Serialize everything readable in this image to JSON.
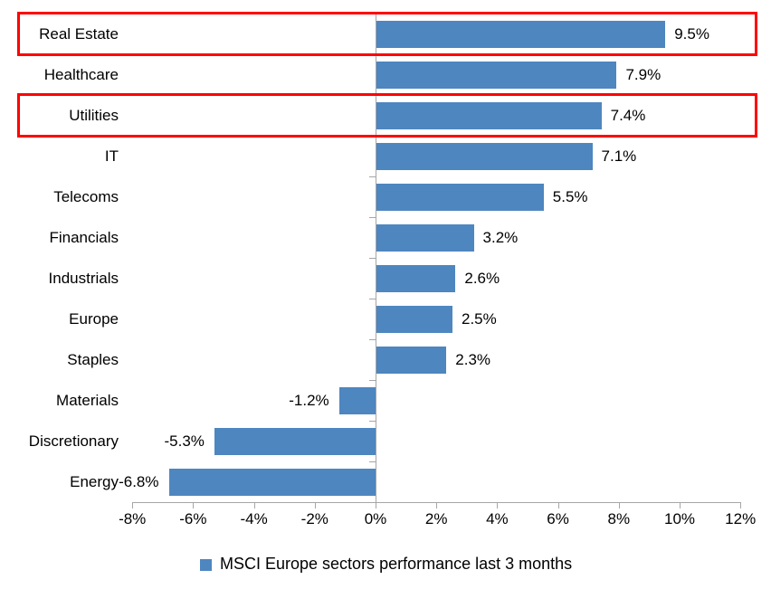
{
  "chart_data": {
    "type": "bar",
    "orientation": "horizontal",
    "title": "",
    "categories": [
      "Real Estate",
      "Healthcare",
      "Utilities",
      "IT",
      "Telecoms",
      "Financials",
      "Industrials",
      "Europe",
      "Staples",
      "Materials",
      "Discretionary",
      "Energy"
    ],
    "series": [
      {
        "name": "MSCI Europe sectors performance last 3 months",
        "values": [
          9.5,
          7.9,
          7.4,
          7.1,
          5.5,
          3.2,
          2.6,
          2.5,
          2.3,
          -1.2,
          -5.3,
          -6.8
        ]
      }
    ],
    "value_labels": [
      "9.5%",
      "7.9%",
      "7.4%",
      "7.1%",
      "5.5%",
      "3.2%",
      "2.6%",
      "2.5%",
      "2.3%",
      "-1.2%",
      "-5.3%",
      "-6.8%"
    ],
    "x_tick_labels": [
      "-8%",
      "-6%",
      "-4%",
      "-2%",
      "0%",
      "2%",
      "4%",
      "6%",
      "8%",
      "10%",
      "12%"
    ],
    "x_tick_values": [
      -8,
      -6,
      -4,
      -2,
      0,
      2,
      4,
      6,
      8,
      10,
      12
    ],
    "xlim": [
      -8,
      12
    ],
    "grid": false,
    "legend_position": "bottom",
    "legend_label": "MSCI Europe sectors performance last 3 months",
    "bar_color": "#4e86c0",
    "axis_color": "#a6a6a6",
    "text_color": "#000000",
    "highlighted_categories": [
      "Real Estate",
      "Utilities"
    ],
    "highlight_box_color": "#fe0000"
  }
}
